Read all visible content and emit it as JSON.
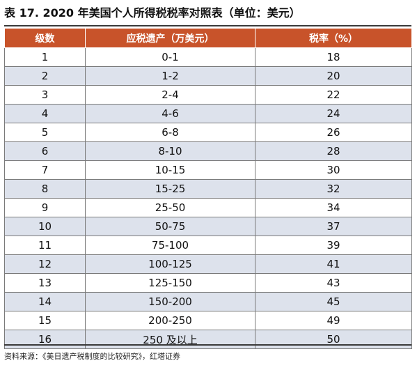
{
  "title": "表 17. 2020 年美国个人所得税税率对照表（单位：美元）",
  "table": {
    "headers": [
      "级数",
      "应税遗产（万美元）",
      "税率（%）"
    ],
    "rows": [
      [
        "1",
        "0-1",
        "18"
      ],
      [
        "2",
        "1-2",
        "20"
      ],
      [
        "3",
        "2-4",
        "22"
      ],
      [
        "4",
        "4-6",
        "24"
      ],
      [
        "5",
        "6-8",
        "26"
      ],
      [
        "6",
        "8-10",
        "28"
      ],
      [
        "7",
        "10-15",
        "30"
      ],
      [
        "8",
        "15-25",
        "32"
      ],
      [
        "9",
        "25-50",
        "34"
      ],
      [
        "10",
        "50-75",
        "37"
      ],
      [
        "11",
        "75-100",
        "39"
      ],
      [
        "12",
        "100-125",
        "41"
      ],
      [
        "13",
        "125-150",
        "43"
      ],
      [
        "14",
        "150-200",
        "45"
      ],
      [
        "15",
        "200-250",
        "49"
      ],
      [
        "16",
        "250 及以上",
        "50"
      ]
    ]
  },
  "source": "资料来源：《美日遗产税制度的比较研究》，红塔证券",
  "colors": {
    "header_bg": "#c8532a",
    "stripe_bg": "#dde2ec"
  }
}
